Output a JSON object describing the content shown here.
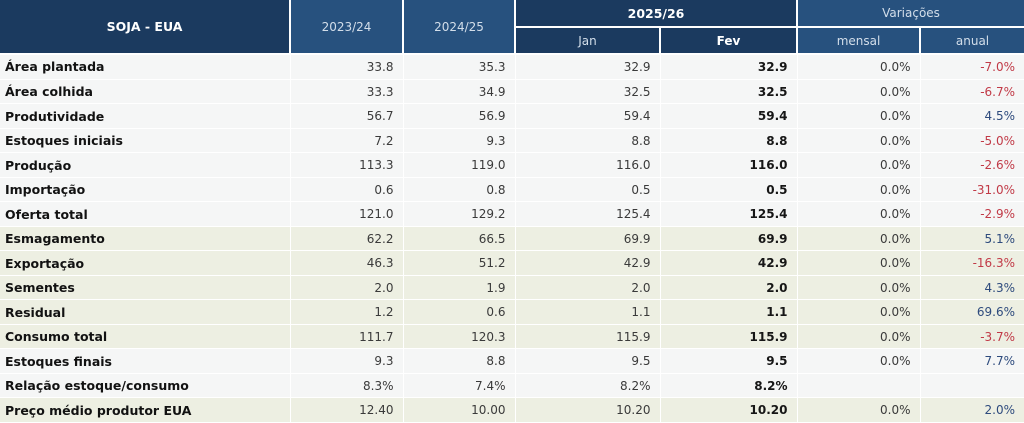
{
  "chart_data": {
    "type": "table",
    "title": "SOJA - EUA",
    "header": {
      "title": "SOJA - EUA",
      "season_cols": [
        "2023/24",
        "2024/25"
      ],
      "group_2025_26": {
        "label": "2025/26",
        "sub_cols": [
          "Jan",
          "Fev"
        ]
      },
      "group_variations": {
        "label": "Variações",
        "sub_cols": [
          "mensal",
          "anual"
        ]
      }
    },
    "rows": [
      {
        "label": "Área plantada",
        "y2023_24": "33.8",
        "y2024_25": "35.3",
        "jan": "32.9",
        "fev": "32.9",
        "mensal": "0.0%",
        "anual": "-7.0%",
        "anual_trend": "neg",
        "tint": "gray"
      },
      {
        "label": "Área colhida",
        "y2023_24": "33.3",
        "y2024_25": "34.9",
        "jan": "32.5",
        "fev": "32.5",
        "mensal": "0.0%",
        "anual": "-6.7%",
        "anual_trend": "neg",
        "tint": "gray"
      },
      {
        "label": "Produtividade",
        "y2023_24": "56.7",
        "y2024_25": "56.9",
        "jan": "59.4",
        "fev": "59.4",
        "mensal": "0.0%",
        "anual": "4.5%",
        "anual_trend": "pos",
        "tint": "gray"
      },
      {
        "label": "Estoques iniciais",
        "y2023_24": "7.2",
        "y2024_25": "9.3",
        "jan": "8.8",
        "fev": "8.8",
        "mensal": "0.0%",
        "anual": "-5.0%",
        "anual_trend": "neg",
        "tint": "gray"
      },
      {
        "label": "Produção",
        "y2023_24": "113.3",
        "y2024_25": "119.0",
        "jan": "116.0",
        "fev": "116.0",
        "mensal": "0.0%",
        "anual": "-2.6%",
        "anual_trend": "neg",
        "tint": "gray"
      },
      {
        "label": "Importação",
        "y2023_24": "0.6",
        "y2024_25": "0.8",
        "jan": "0.5",
        "fev": "0.5",
        "mensal": "0.0%",
        "anual": "-31.0%",
        "anual_trend": "neg",
        "tint": "gray"
      },
      {
        "label": "Oferta total",
        "y2023_24": "121.0",
        "y2024_25": "129.2",
        "jan": "125.4",
        "fev": "125.4",
        "mensal": "0.0%",
        "anual": "-2.9%",
        "anual_trend": "neg",
        "tint": "gray"
      },
      {
        "label": "Esmagamento",
        "y2023_24": "62.2",
        "y2024_25": "66.5",
        "jan": "69.9",
        "fev": "69.9",
        "mensal": "0.0%",
        "anual": "5.1%",
        "anual_trend": "pos",
        "tint": "green"
      },
      {
        "label": "Exportação",
        "y2023_24": "46.3",
        "y2024_25": "51.2",
        "jan": "42.9",
        "fev": "42.9",
        "mensal": "0.0%",
        "anual": "-16.3%",
        "anual_trend": "neg",
        "tint": "green"
      },
      {
        "label": "Sementes",
        "y2023_24": "2.0",
        "y2024_25": "1.9",
        "jan": "2.0",
        "fev": "2.0",
        "mensal": "0.0%",
        "anual": "4.3%",
        "anual_trend": "pos",
        "tint": "green"
      },
      {
        "label": "Residual",
        "y2023_24": "1.2",
        "y2024_25": "0.6",
        "jan": "1.1",
        "fev": "1.1",
        "mensal": "0.0%",
        "anual": "69.6%",
        "anual_trend": "pos",
        "tint": "green"
      },
      {
        "label": "Consumo total",
        "y2023_24": "111.7",
        "y2024_25": "120.3",
        "jan": "115.9",
        "fev": "115.9",
        "mensal": "0.0%",
        "anual": "-3.7%",
        "anual_trend": "neg",
        "tint": "green"
      },
      {
        "label": "Estoques finais",
        "y2023_24": "9.3",
        "y2024_25": "8.8",
        "jan": "9.5",
        "fev": "9.5",
        "mensal": "0.0%",
        "anual": "7.7%",
        "anual_trend": "pos",
        "tint": "gray"
      },
      {
        "label": "Relação estoque/consumo",
        "y2023_24": "8.3%",
        "y2024_25": "7.4%",
        "jan": "8.2%",
        "fev": "8.2%",
        "mensal": "",
        "anual": "",
        "anual_trend": "",
        "tint": "gray"
      },
      {
        "label": "Preço médio produtor EUA",
        "y2023_24": "12.40",
        "y2024_25": "10.00",
        "jan": "10.20",
        "fev": "10.20",
        "mensal": "0.0%",
        "anual": "2.0%",
        "anual_trend": "pos",
        "tint": "green"
      }
    ]
  },
  "colors": {
    "header_dark_navy": "#1B3A5F",
    "header_medium_blue": "#27517E",
    "row_band_gray": "#F5F6F6",
    "row_band_green": "#EDEFE2",
    "negative_red": "#C13A47",
    "positive_blue": "#2E4B7D"
  }
}
